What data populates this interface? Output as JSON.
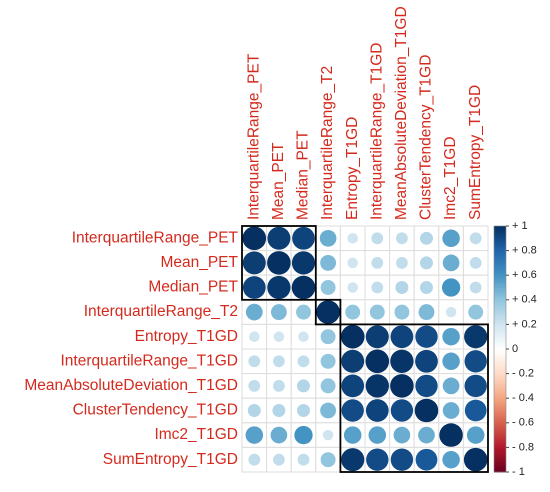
{
  "chart_data": {
    "type": "corrplot",
    "labels": [
      "InterquartileRange_PET",
      "Mean_PET",
      "Median_PET",
      "InterquartileRange_T2",
      "Entropy_T1GD",
      "InterquartileRange_T1GD",
      "MeanAbsoluteDeviation_T1GD",
      "ClusterTendency_T1GD",
      "Imc2_T1GD",
      "SumEntropy_T1GD"
    ],
    "matrix": [
      [
        1,
        0.95,
        0.93,
        0.5,
        0.2,
        0.25,
        0.25,
        0.3,
        0.55,
        0.25
      ],
      [
        0.95,
        1,
        0.97,
        0.45,
        0.2,
        0.25,
        0.25,
        0.3,
        0.5,
        0.25
      ],
      [
        0.93,
        0.97,
        1,
        0.4,
        0.2,
        0.25,
        0.3,
        0.3,
        0.6,
        0.25
      ],
      [
        0.5,
        0.45,
        0.4,
        1,
        0.4,
        0.4,
        0.4,
        0.45,
        0.2,
        0.4
      ],
      [
        0.2,
        0.2,
        0.2,
        0.4,
        1,
        0.95,
        0.93,
        0.9,
        0.55,
        0.97
      ],
      [
        0.25,
        0.25,
        0.25,
        0.4,
        0.95,
        1,
        0.98,
        0.93,
        0.55,
        0.9
      ],
      [
        0.25,
        0.25,
        0.3,
        0.4,
        0.93,
        0.98,
        1,
        0.9,
        0.5,
        0.9
      ],
      [
        0.3,
        0.3,
        0.3,
        0.45,
        0.9,
        0.93,
        0.9,
        1,
        0.5,
        0.85
      ],
      [
        0.55,
        0.5,
        0.6,
        0.2,
        0.55,
        0.55,
        0.5,
        0.5,
        1,
        0.55
      ],
      [
        0.25,
        0.25,
        0.25,
        0.4,
        0.97,
        0.9,
        0.9,
        0.85,
        0.55,
        1
      ]
    ],
    "cluster_boxes": [
      [
        0,
        2
      ],
      [
        3,
        3
      ],
      [
        4,
        9
      ]
    ],
    "colorscale": [
      "#67001F",
      "#B2182B",
      "#D6604D",
      "#F4A582",
      "#FDDBC7",
      "#FFFFFF",
      "#D1E5F0",
      "#92C5DE",
      "#4393C3",
      "#2166AC",
      "#053061"
    ],
    "clim": [
      -1,
      1
    ],
    "cticks": [
      {
        "value": 1,
        "label": "+ 1"
      },
      {
        "value": 0.8,
        "label": "+ 0.8"
      },
      {
        "value": 0.6,
        "label": "+ 0.6"
      },
      {
        "value": 0.4,
        "label": "+ 0.4"
      },
      {
        "value": 0.2,
        "label": "+ 0.2"
      },
      0,
      {
        "value": -0.2,
        "label": "- 0.2"
      },
      {
        "value": -0.4,
        "label": "- 0.4"
      },
      {
        "value": -0.6,
        "label": "- 0.6"
      },
      {
        "value": -0.8,
        "label": "- 0.8"
      },
      {
        "value": -1,
        "label": "- 1"
      }
    ]
  }
}
